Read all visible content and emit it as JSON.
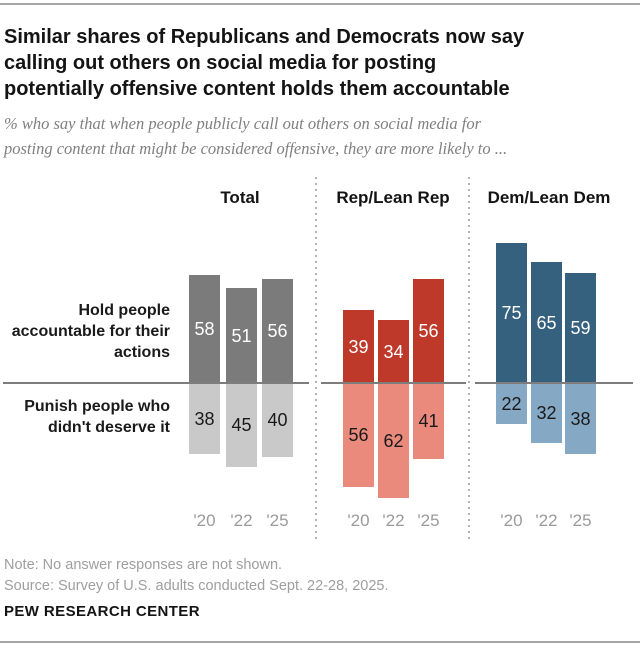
{
  "header": {
    "title": "Similar shares of Republicans and Democrats now say calling out others on social media for posting potentially offensive content holds them accountable",
    "title_lines": [
      "Similar shares of Republicans and Democrats now say",
      "calling out others on social media for posting",
      "potentially offensive content holds them accountable"
    ],
    "subtitle": "% who say that when people publicly call out others on social media for posting content that might be considered offensive, they are more likely to ...",
    "subtitle_lines": [
      "% who say that when people publicly call out others on social media for",
      "posting content that might be considered offensive, they are more likely to ..."
    ]
  },
  "chart_data": {
    "type": "bar",
    "variant": "diverging-vertical",
    "unit": "%",
    "categories": [
      "'20",
      "'22",
      "'25"
    ],
    "row_labels": [
      "Hold people accountable for their actions",
      "Punish people who didn't deserve it"
    ],
    "panels": [
      {
        "label": "Total",
        "above": {
          "name": "Hold people accountable for their actions",
          "values": [
            58,
            51,
            56
          ],
          "color": "#7b7b7b",
          "label_color": "#ffffff"
        },
        "below": {
          "name": "Punish people who didn't deserve it",
          "values": [
            38,
            45,
            40
          ],
          "color": "#c9c9c9",
          "label_color": "#1a1a1a"
        }
      },
      {
        "label": "Rep/Lean Rep",
        "above": {
          "name": "Hold people accountable for their actions",
          "values": [
            39,
            34,
            56
          ],
          "color": "#bf392b",
          "label_color": "#ffffff"
        },
        "below": {
          "name": "Punish people who didn't deserve it",
          "values": [
            56,
            62,
            41
          ],
          "color": "#e98a7d",
          "label_color": "#1a1a1a"
        }
      },
      {
        "label": "Dem/Lean Dem",
        "above": {
          "name": "Hold people accountable for their actions",
          "values": [
            75,
            65,
            59
          ],
          "color": "#35617e",
          "label_color": "#ffffff"
        },
        "below": {
          "name": "Punish people who didn't deserve it",
          "values": [
            22,
            32,
            38
          ],
          "color": "#85a9c5",
          "label_color": "#1a1a1a"
        }
      }
    ],
    "baseline_value": 0,
    "legend": "none",
    "grid": "off"
  },
  "footer": {
    "note": "Note: No answer responses are not shown.",
    "source": "Source: Survey of U.S. adults conducted Sept. 22-28, 2025.",
    "brand": "PEW RESEARCH CENTER"
  }
}
